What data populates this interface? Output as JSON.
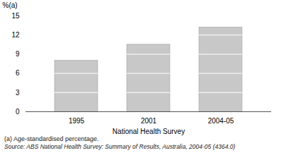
{
  "chart_data": {
    "type": "bar",
    "categories": [
      "1995",
      "2001",
      "2004-05"
    ],
    "values": [
      8.0,
      10.5,
      13.2
    ],
    "color": "#c8c8c8",
    "xlabel": "National Health Survey",
    "ylabel": "%(a)",
    "ylim": [
      0,
      15
    ],
    "yticks": [
      0,
      3,
      6,
      9,
      12,
      15
    ],
    "annotations": [
      "(a) Age-standardised percentage.",
      "Source: ABS National Health Survey: Summary of Results, Australia, 2004-05 (4364.0)"
    ]
  }
}
